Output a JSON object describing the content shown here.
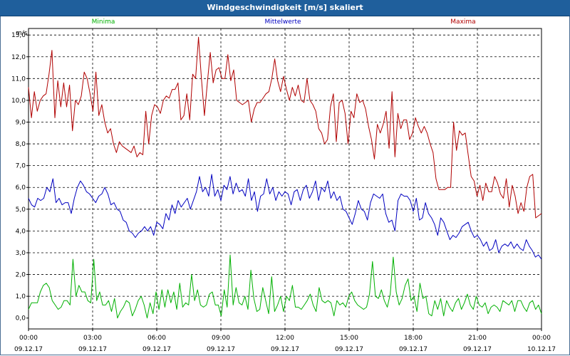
{
  "window": {
    "title": "Windgeschwindigkeit [m/s] skaliert"
  },
  "chart_data": {
    "type": "line",
    "title": "Windgeschwindigkeit [m/s] skaliert",
    "ylabel": "m/s",
    "xlabel": "",
    "ylim": [
      -0.5,
      13.3
    ],
    "y_ticks": [
      "0,0",
      "1,0",
      "2,0",
      "3,0",
      "4,0",
      "5,0",
      "6,0",
      "7,0",
      "8,0",
      "9,0",
      "10,0",
      "11,0",
      "12,0",
      "13,0"
    ],
    "x_ticks": [
      {
        "time": "00:00",
        "date": "09.12.17"
      },
      {
        "time": "03:00",
        "date": "09.12.17"
      },
      {
        "time": "06:00",
        "date": "09.12.17"
      },
      {
        "time": "09:00",
        "date": "09.12.17"
      },
      {
        "time": "12:00",
        "date": "09.12.17"
      },
      {
        "time": "15:00",
        "date": "09.12.17"
      },
      {
        "time": "18:00",
        "date": "09.12.17"
      },
      {
        "time": "21:00",
        "date": "09.12.17"
      },
      {
        "time": "00:00",
        "date": "10.12.17"
      }
    ],
    "x_hours_range": [
      0,
      24
    ],
    "grid": true,
    "legend_position": "top",
    "series": [
      {
        "name": "Minima",
        "color": "#00b000",
        "values": [
          0.4,
          0.7,
          0.7,
          0.7,
          1.2,
          1.5,
          1.6,
          1.4,
          0.8,
          0.6,
          0.4,
          0.5,
          0.8,
          0.8,
          0.6,
          2.7,
          1.0,
          1.5,
          1.2,
          1.2,
          0.8,
          0.7,
          2.7,
          0.8,
          1.2,
          0.6,
          0.6,
          0.8,
          0.3,
          0.9,
          0.0,
          0.3,
          0.5,
          0.8,
          0.7,
          0.1,
          0.4,
          0.8,
          1.0,
          0.6,
          0.0,
          0.7,
          0.2,
          1.2,
          0.4,
          1.3,
          0.5,
          1.3,
          0.7,
          1.2,
          0.4,
          1.6,
          0.5,
          0.7,
          0.6,
          2.0,
          0.8,
          1.3,
          0.6,
          0.5,
          0.6,
          1.1,
          1.2,
          0.6,
          0.6,
          0.1,
          1.3,
          0.5,
          2.9,
          0.6,
          1.4,
          0.7,
          0.6,
          1.0,
          0.4,
          2.2,
          0.9,
          0.3,
          0.4,
          1.4,
          0.8,
          0.2,
          1.9,
          0.3,
          0.6,
          1.0,
          0.3,
          1.0,
          0.8,
          1.5,
          0.5,
          0.5,
          0.4,
          0.6,
          0.8,
          1.1,
          0.6,
          0.3,
          1.4,
          0.8,
          0.7,
          0.8,
          0.7,
          0.1,
          0.8,
          0.6,
          0.7,
          0.5,
          1.0,
          1.2,
          0.8,
          0.6,
          0.5,
          0.4,
          0.5,
          1.1,
          2.6,
          1.0,
          0.9,
          1.3,
          0.8,
          0.5,
          1.1,
          2.8,
          1.2,
          0.6,
          0.9,
          1.5,
          1.8,
          0.8,
          1.0,
          0.3,
          1.6,
          0.9,
          1.0,
          0.2,
          0.1,
          0.8,
          0.4,
          0.9,
          0.1,
          0.8,
          0.5,
          0.3,
          0.7,
          0.9,
          0.4,
          0.7,
          1.1,
          0.6,
          0.4,
          1.0,
          0.6,
          0.5,
          0.7,
          0.2,
          0.5,
          0.6,
          0.5,
          0.3,
          0.8,
          0.7,
          0.6,
          0.8,
          0.3,
          0.8,
          0.8,
          0.5,
          0.3,
          0.7,
          0.8,
          0.4,
          0.6,
          0.2
        ]
      },
      {
        "name": "Mittelwerte",
        "color": "#0000c0",
        "values": [
          5.5,
          5.2,
          5.1,
          5.5,
          5.4,
          5.5,
          6.0,
          5.8,
          6.4,
          5.3,
          5.5,
          5.2,
          5.3,
          5.3,
          4.8,
          5.5,
          6.0,
          6.3,
          6.1,
          5.8,
          5.7,
          5.5,
          5.3,
          5.6,
          5.7,
          6.0,
          5.7,
          5.2,
          5.3,
          5.0,
          4.9,
          4.5,
          4.4,
          4.0,
          3.9,
          3.7,
          3.9,
          4.0,
          4.2,
          4.0,
          4.2,
          3.8,
          4.4,
          4.3,
          4.1,
          4.8,
          4.5,
          5.2,
          4.8,
          5.4,
          5.1,
          5.3,
          5.5,
          5.0,
          5.4,
          5.8,
          6.5,
          5.8,
          6.0,
          5.6,
          6.6,
          5.6,
          5.9,
          5.4,
          6.1,
          5.9,
          6.5,
          5.7,
          6.2,
          5.8,
          5.9,
          5.6,
          6.4,
          5.4,
          5.8,
          4.9,
          5.6,
          5.7,
          6.4,
          5.7,
          6.0,
          5.4,
          5.8,
          5.6,
          5.8,
          5.7,
          5.2,
          5.8,
          5.9,
          5.4,
          5.9,
          6.1,
          5.5,
          5.8,
          6.3,
          5.4,
          6.0,
          5.8,
          6.3,
          5.5,
          5.8,
          5.4,
          5.6,
          5.0,
          4.9,
          4.6,
          4.3,
          4.8,
          5.4,
          5.0,
          4.9,
          4.5,
          5.3,
          5.7,
          5.6,
          5.5,
          5.7,
          4.8,
          4.4,
          4.5,
          4.0,
          5.4,
          5.7,
          5.6,
          5.6,
          5.4,
          4.9,
          5.5,
          4.5,
          4.6,
          5.3,
          4.8,
          4.6,
          4.3,
          3.8,
          4.6,
          4.4,
          4.0,
          3.6,
          3.8,
          3.7,
          3.9,
          4.2,
          4.3,
          4.4,
          4.0,
          3.7,
          3.8,
          3.6,
          3.3,
          3.5,
          3.1,
          3.2,
          3.6,
          3.0,
          3.3,
          3.4,
          3.3,
          3.5,
          3.2,
          3.4,
          3.2,
          3.1,
          3.6,
          3.3,
          3.1,
          2.8,
          2.9,
          2.7
        ]
      },
      {
        "name": "Maxima",
        "color": "#b00000",
        "values": [
          10.6,
          9.2,
          10.4,
          9.5,
          10.0,
          10.2,
          10.3,
          11.2,
          12.3,
          9.2,
          10.9,
          9.7,
          10.8,
          9.7,
          10.7,
          8.6,
          10.0,
          9.8,
          10.2,
          11.3,
          11.0,
          10.3,
          9.5,
          11.3,
          9.3,
          9.8,
          9.0,
          8.5,
          8.7,
          8.0,
          7.6,
          8.1,
          7.9,
          7.8,
          7.7,
          7.6,
          7.9,
          7.4,
          7.6,
          7.5,
          9.5,
          8.0,
          9.3,
          9.8,
          9.7,
          9.4,
          10.0,
          10.2,
          10.1,
          10.5,
          10.5,
          10.8,
          9.1,
          9.3,
          10.3,
          9.1,
          11.2,
          11.0,
          12.9,
          11.0,
          9.3,
          10.8,
          12.2,
          10.8,
          11.4,
          11.5,
          11.0,
          11.0,
          12.1,
          10.9,
          11.4,
          10.0,
          9.9,
          9.8,
          9.9,
          10.0,
          9.0,
          9.6,
          9.9,
          9.9,
          10.1,
          10.3,
          10.4,
          11.0,
          11.9,
          10.9,
          10.4,
          11.1,
          10.5,
          10.0,
          10.6,
          10.2,
          10.7,
          10.0,
          9.9,
          11.0,
          10.0,
          9.8,
          9.5,
          8.7,
          8.5,
          8.0,
          8.2,
          9.7,
          10.3,
          8.1,
          9.9,
          10.0,
          9.4,
          8.0,
          9.5,
          9.2,
          10.3,
          9.9,
          10.0,
          9.6,
          8.8,
          8.2,
          7.3,
          8.9,
          8.5,
          8.9,
          9.5,
          7.8,
          10.4,
          7.4,
          9.4,
          8.7,
          9.1,
          9.1,
          8.2,
          8.5,
          9.2,
          8.8,
          8.5,
          8.8,
          8.5,
          8.0,
          7.6,
          6.4,
          5.9,
          5.9,
          5.9,
          6.0,
          6.0,
          9.0,
          7.7,
          8.6,
          8.4,
          8.5,
          7.5,
          6.5,
          6.3,
          5.6,
          6.1,
          5.4,
          6.2,
          5.8,
          5.8,
          6.5,
          6.2,
          5.7,
          5.5,
          6.4,
          5.1,
          6.1,
          5.6,
          4.8,
          5.3,
          4.9,
          6.0,
          6.5,
          6.6,
          4.6,
          4.7,
          4.8
        ]
      }
    ]
  }
}
